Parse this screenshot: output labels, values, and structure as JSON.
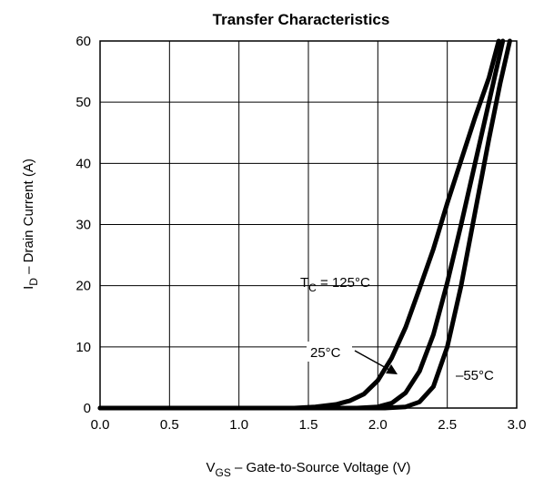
{
  "chart_data": {
    "type": "line",
    "title": "Transfer Characteristics",
    "xlabel": {
      "main": "V",
      "sub": "GS",
      "rest": " –  Gate-to-Source Voltage (V)"
    },
    "ylabel": {
      "main": "I",
      "sub": "D",
      "rest": " –  Drain Current (A)"
    },
    "xlim": [
      0.0,
      3.0
    ],
    "ylim": [
      0,
      60
    ],
    "x_ticks": [
      "0.0",
      "0.5",
      "1.0",
      "1.5",
      "2.0",
      "2.5",
      "3.0"
    ],
    "y_ticks": [
      "0",
      "10",
      "20",
      "30",
      "40",
      "50",
      "60"
    ],
    "grid": true,
    "series": [
      {
        "name": "T_C = 125°C",
        "points": [
          [
            0.0,
            0
          ],
          [
            1.4,
            0
          ],
          [
            1.55,
            0.2
          ],
          [
            1.7,
            0.6
          ],
          [
            1.8,
            1.2
          ],
          [
            1.9,
            2.3
          ],
          [
            2.0,
            4.5
          ],
          [
            2.1,
            8.2
          ],
          [
            2.2,
            13.2
          ],
          [
            2.3,
            19.5
          ],
          [
            2.4,
            26.0
          ],
          [
            2.5,
            33.5
          ],
          [
            2.6,
            40.5
          ],
          [
            2.7,
            47.5
          ],
          [
            2.8,
            54.0
          ],
          [
            2.87,
            60
          ]
        ]
      },
      {
        "name": "25°C",
        "points": [
          [
            0.0,
            0
          ],
          [
            1.85,
            0
          ],
          [
            2.0,
            0.2
          ],
          [
            2.1,
            0.8
          ],
          [
            2.2,
            2.5
          ],
          [
            2.3,
            6.0
          ],
          [
            2.4,
            12.0
          ],
          [
            2.5,
            20.5
          ],
          [
            2.6,
            30.0
          ],
          [
            2.7,
            40.0
          ],
          [
            2.8,
            50.0
          ],
          [
            2.9,
            60
          ]
        ]
      },
      {
        "name": "–55°C",
        "points": [
          [
            0.0,
            0
          ],
          [
            2.05,
            0
          ],
          [
            2.2,
            0.2
          ],
          [
            2.3,
            1.0
          ],
          [
            2.4,
            3.5
          ],
          [
            2.5,
            10.0
          ],
          [
            2.6,
            20.0
          ],
          [
            2.7,
            32.0
          ],
          [
            2.8,
            44.0
          ],
          [
            2.88,
            53.0
          ],
          [
            2.95,
            60
          ]
        ]
      }
    ],
    "annotations": {
      "tc125": {
        "prefix": "T",
        "sub": "C",
        "rest": " = 125°C"
      },
      "t25": "25°C",
      "tm55": "–55°C"
    }
  }
}
